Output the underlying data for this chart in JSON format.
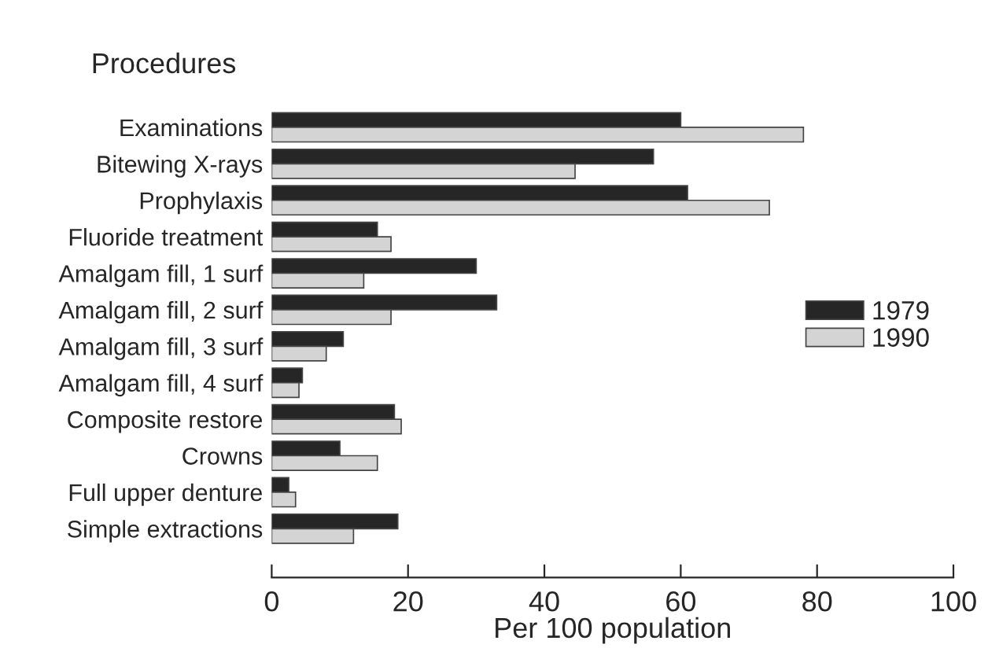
{
  "chart_data": {
    "type": "bar",
    "orientation": "horizontal",
    "ylabel": "Procedures",
    "xlabel": "Per 100 population",
    "categories": [
      "Examinations",
      "Bitewing X-rays",
      "Prophylaxis",
      "Fluoride treatment",
      "Amalgam fill, 1 surf",
      "Amalgam fill, 2 surf",
      "Amalgam fill, 3 surf",
      "Amalgam fill, 4 surf",
      "Composite restore",
      "Crowns",
      "Full upper denture",
      "Simple extractions"
    ],
    "series": [
      {
        "name": "1979",
        "color": "#262626",
        "values": [
          60,
          56,
          61,
          15.5,
          30,
          33,
          10.5,
          4.5,
          18,
          10,
          2.5,
          18.5
        ]
      },
      {
        "name": "1990",
        "color": "#d4d4d4",
        "values": [
          78,
          44.5,
          73,
          17.5,
          13.5,
          17.5,
          8,
          4,
          19,
          15.5,
          3.5,
          12
        ]
      }
    ],
    "xlim": [
      0,
      100
    ],
    "xticks": [
      0,
      20,
      40,
      60,
      80,
      100
    ],
    "legend": "right",
    "grid": false
  }
}
